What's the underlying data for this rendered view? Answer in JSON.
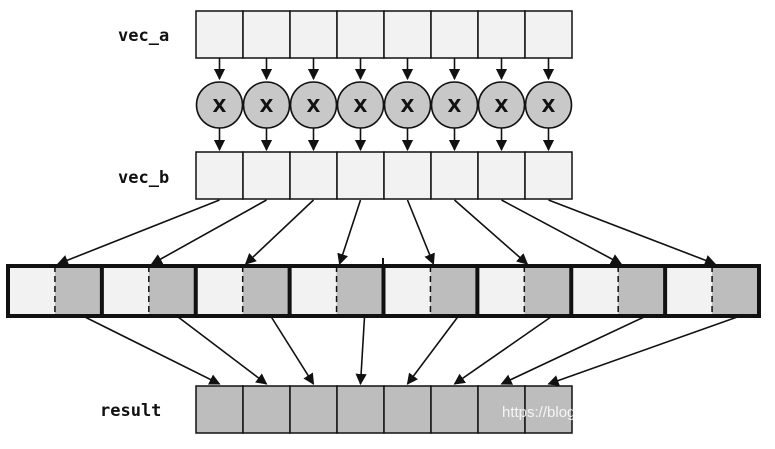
{
  "labels": {
    "vec_a": "vec_a",
    "vec_b": "vec_b",
    "result": "result"
  },
  "multiply_symbol": "X",
  "lanes": 8,
  "watermark": "https://blog.csdn.net/just_sort",
  "colors": {
    "light_cell": "#f2f2f2",
    "dark_cell": "#bdbdbd",
    "multiplier": "#c8c8c8",
    "stroke": "#111111"
  }
}
